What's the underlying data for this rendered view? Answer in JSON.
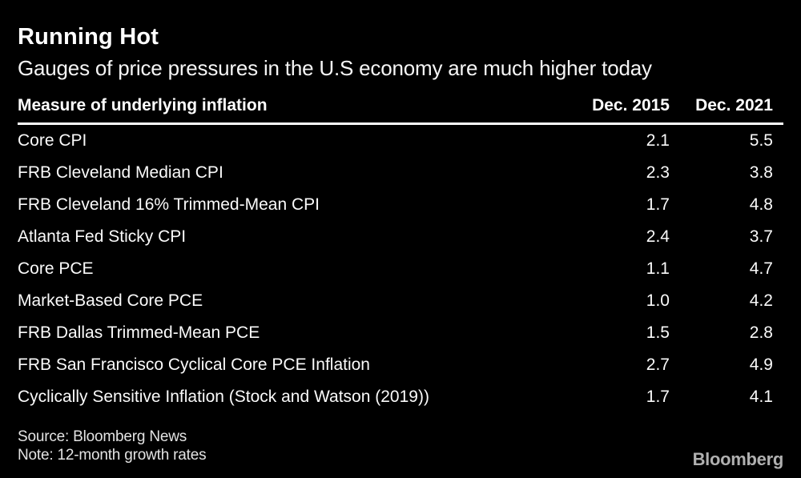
{
  "header": {
    "title": "Running Hot",
    "subtitle": "Gauges of price pressures in the U.S economy are much higher today"
  },
  "chart_data": {
    "type": "table",
    "title": "Running Hot",
    "subtitle": "Gauges of price pressures in the U.S economy are much higher today",
    "columns": {
      "measure": "Measure of underlying inflation",
      "dec_2015": "Dec. 2015",
      "dec_2021": "Dec. 2021"
    },
    "categories": [
      "Core CPI",
      "FRB Cleveland Median CPI",
      "FRB Cleveland 16% Trimmed-Mean CPI",
      "Atlanta Fed Sticky CPI",
      "Core PCE",
      "Market-Based Core PCE",
      "FRB Dallas Trimmed-Mean PCE",
      "FRB San Francisco Cyclical Core PCE Inflation",
      "Cyclically Sensitive Inflation (Stock and Watson (2019))"
    ],
    "series": [
      {
        "name": "Dec. 2015",
        "values": [
          2.1,
          2.3,
          1.7,
          2.4,
          1.1,
          1.0,
          1.5,
          2.7,
          1.7
        ]
      },
      {
        "name": "Dec. 2021",
        "values": [
          5.5,
          3.8,
          4.8,
          3.7,
          4.7,
          4.2,
          2.8,
          4.9,
          4.1
        ]
      }
    ],
    "rows": [
      {
        "measure": "Core CPI",
        "dec_2015": "2.1",
        "dec_2021": "5.5"
      },
      {
        "measure": "FRB Cleveland Median CPI",
        "dec_2015": "2.3",
        "dec_2021": "3.8"
      },
      {
        "measure": "FRB Cleveland 16% Trimmed-Mean CPI",
        "dec_2015": "1.7",
        "dec_2021": "4.8"
      },
      {
        "measure": "Atlanta Fed Sticky CPI",
        "dec_2015": "2.4",
        "dec_2021": "3.7"
      },
      {
        "measure": "Core PCE",
        "dec_2015": "1.1",
        "dec_2021": "4.7"
      },
      {
        "measure": "Market-Based Core PCE",
        "dec_2015": "1.0",
        "dec_2021": "4.2"
      },
      {
        "measure": "FRB Dallas Trimmed-Mean PCE",
        "dec_2015": "1.5",
        "dec_2021": "2.8"
      },
      {
        "measure": "FRB San Francisco Cyclical Core PCE Inflation",
        "dec_2015": "2.7",
        "dec_2021": "4.9"
      },
      {
        "measure": "Cyclically Sensitive Inflation (Stock and Watson (2019))",
        "dec_2015": "1.7",
        "dec_2021": "4.1"
      }
    ]
  },
  "footer": {
    "source": "Source: Bloomberg News",
    "note": "Note: 12-month growth rates",
    "brand": "Bloomberg"
  },
  "colors": {
    "background": "#000000",
    "text": "#ffffff",
    "divider": "#ffffff",
    "footnote_text": "#e3e3e3",
    "brand_logo": "#b0b0b0"
  }
}
